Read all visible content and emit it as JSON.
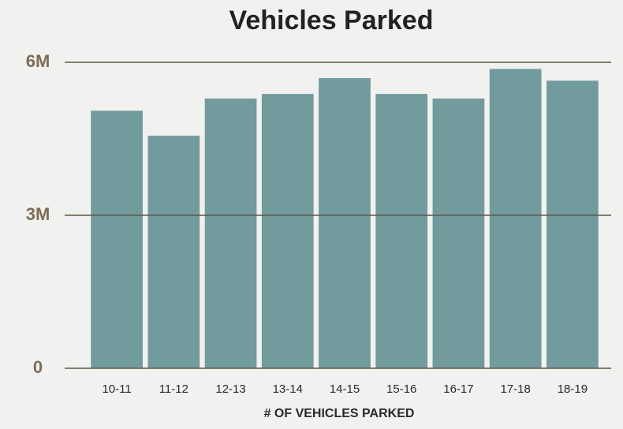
{
  "chart_data": {
    "type": "bar",
    "title": "Vehicles Parked",
    "x_label": "# OF VEHICLES PARKED",
    "categories": [
      "10-11",
      "11-12",
      "12-13",
      "13-14",
      "14-15",
      "15-16",
      "16-17",
      "17-18",
      "18-19"
    ],
    "values": [
      5050000,
      4560000,
      5290000,
      5380000,
      5690000,
      5380000,
      5290000,
      5870000,
      5640000
    ],
    "color": "#729b9e",
    "ylim": [
      0,
      6000000
    ],
    "yticks": [
      0,
      {
        "value": 3000000,
        "label": "3M"
      },
      {
        "value": 6000000,
        "label": "6M"
      }
    ],
    "grid": true
  }
}
